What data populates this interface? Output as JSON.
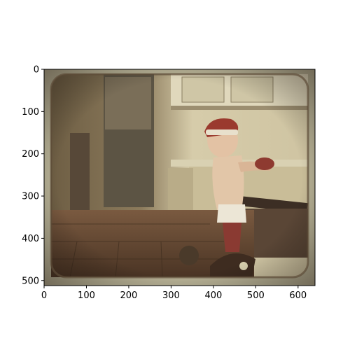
{
  "figure": {
    "image_description_colors": {
      "frame_dark": "#4a3a2c",
      "wall_cream": "#d8cfae",
      "floor_wood": "#6b4a34",
      "hat_red": "#9a3a2e",
      "skin": "#e3c2a4",
      "axes_border": "#000000",
      "background": "#ffffff"
    }
  },
  "axes": {
    "x": {
      "ticks": [
        "0",
        "100",
        "200",
        "300",
        "400",
        "500",
        "600"
      ],
      "tick_values": [
        0,
        100,
        200,
        300,
        400,
        500,
        600
      ],
      "range": [
        0,
        640
      ]
    },
    "y": {
      "ticks": [
        "0",
        "100",
        "200",
        "300",
        "400",
        "500"
      ],
      "tick_values": [
        0,
        100,
        200,
        300,
        400,
        500
      ],
      "range": [
        0,
        512
      ],
      "inverted": true
    }
  }
}
